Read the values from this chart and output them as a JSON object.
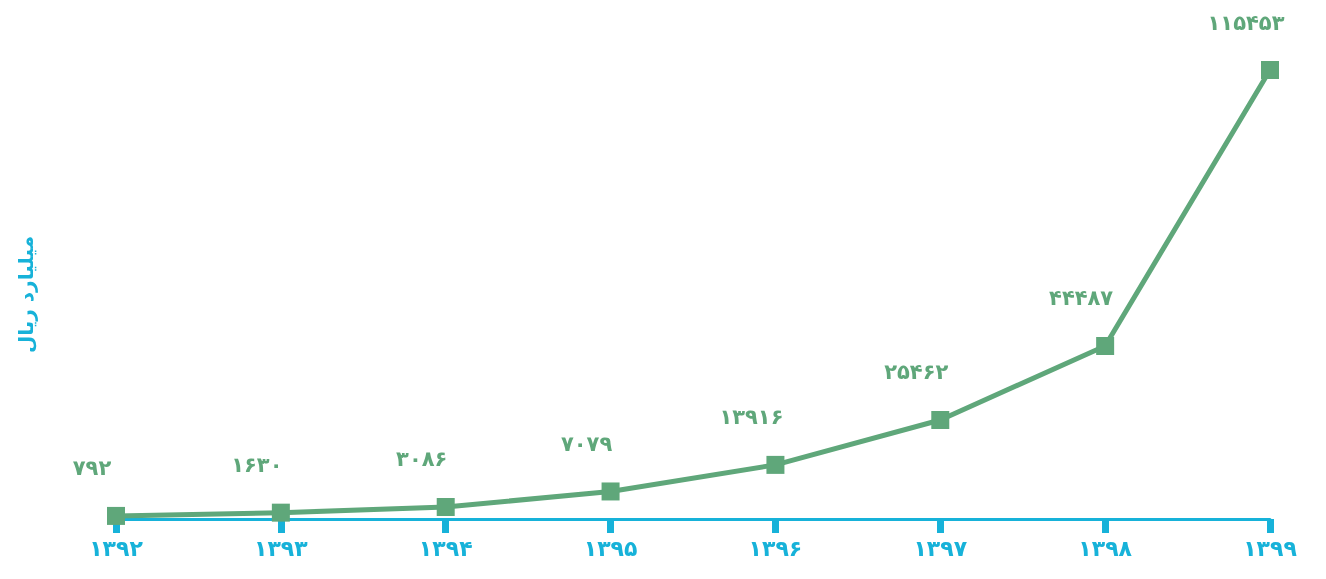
{
  "chart_data": {
    "type": "line",
    "ylabel": "میلیارد ریال",
    "categories": [
      "۱۳۹۲",
      "۱۳۹۳",
      "۱۳۹۴",
      "۱۳۹۵",
      "۱۳۹۶",
      "۱۳۹۷",
      "۱۳۹۸",
      "۱۳۹۹"
    ],
    "series": [
      {
        "color": "#5fa77a",
        "values": [
          792,
          1630,
          3086,
          7079,
          13916,
          25462,
          44487,
          115453
        ],
        "value_labels": [
          "۷۹۲",
          "۱۶۳۰",
          "۳۰۸۶",
          "۷۰۷۹",
          "۱۳۹۱۶",
          "۲۵۴۶۲",
          "۴۴۴۸۷",
          "۱۱۵۴۵۳"
        ]
      }
    ],
    "marker": "square",
    "line_style": "solid",
    "grid": false
  }
}
